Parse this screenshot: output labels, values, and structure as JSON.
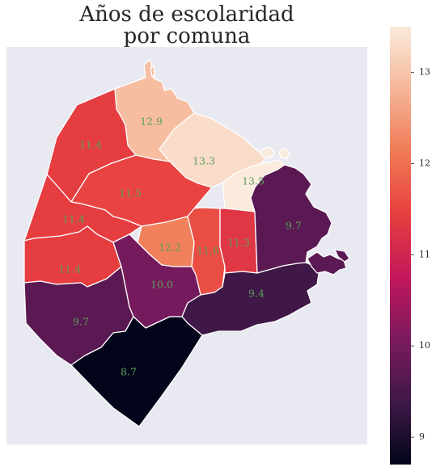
{
  "title_line1": "Años de escolaridad",
  "title_line2": "por comuna",
  "colors": {
    "panel_background": "#e9e9f2",
    "region_border": "#ffffff",
    "label_text": "#5aa05a",
    "colormap_stops": [
      "#03051a",
      "#3e1847",
      "#7b1a5e",
      "#c2185b",
      "#e83f3f",
      "#f07a56",
      "#f5b698",
      "#faebdd"
    ]
  },
  "chart_data": {
    "type": "choropleth",
    "title": "Años de escolaridad por comuna",
    "regions": [
      {
        "value": 12.9,
        "label": "12.9"
      },
      {
        "value": 13.3,
        "label": "13.3"
      },
      {
        "value": 13.5,
        "label": "13.5"
      },
      {
        "value": 11.4,
        "label": "11.4"
      },
      {
        "value": 11.5,
        "label": "11.5"
      },
      {
        "value": 11.4,
        "label": "11.4"
      },
      {
        "value": 11.4,
        "label": "11.4"
      },
      {
        "value": 12.2,
        "label": "12.2"
      },
      {
        "value": 11.6,
        "label": "11.6"
      },
      {
        "value": 11.3,
        "label": "11.3"
      },
      {
        "value": 9.7,
        "label": "9.7"
      },
      {
        "value": 10.0,
        "label": "10.0"
      },
      {
        "value": 9.4,
        "label": "9.4"
      },
      {
        "value": 9.7,
        "label": "9.7"
      },
      {
        "value": 8.7,
        "label": "8.7"
      }
    ],
    "colorbar": {
      "min": 8.7,
      "max": 13.5,
      "ticks": [
        9,
        10,
        11,
        12,
        13
      ],
      "tick_labels": [
        "9",
        "10",
        "11",
        "12",
        "13"
      ]
    },
    "axes_ticks": false,
    "grid": false
  }
}
